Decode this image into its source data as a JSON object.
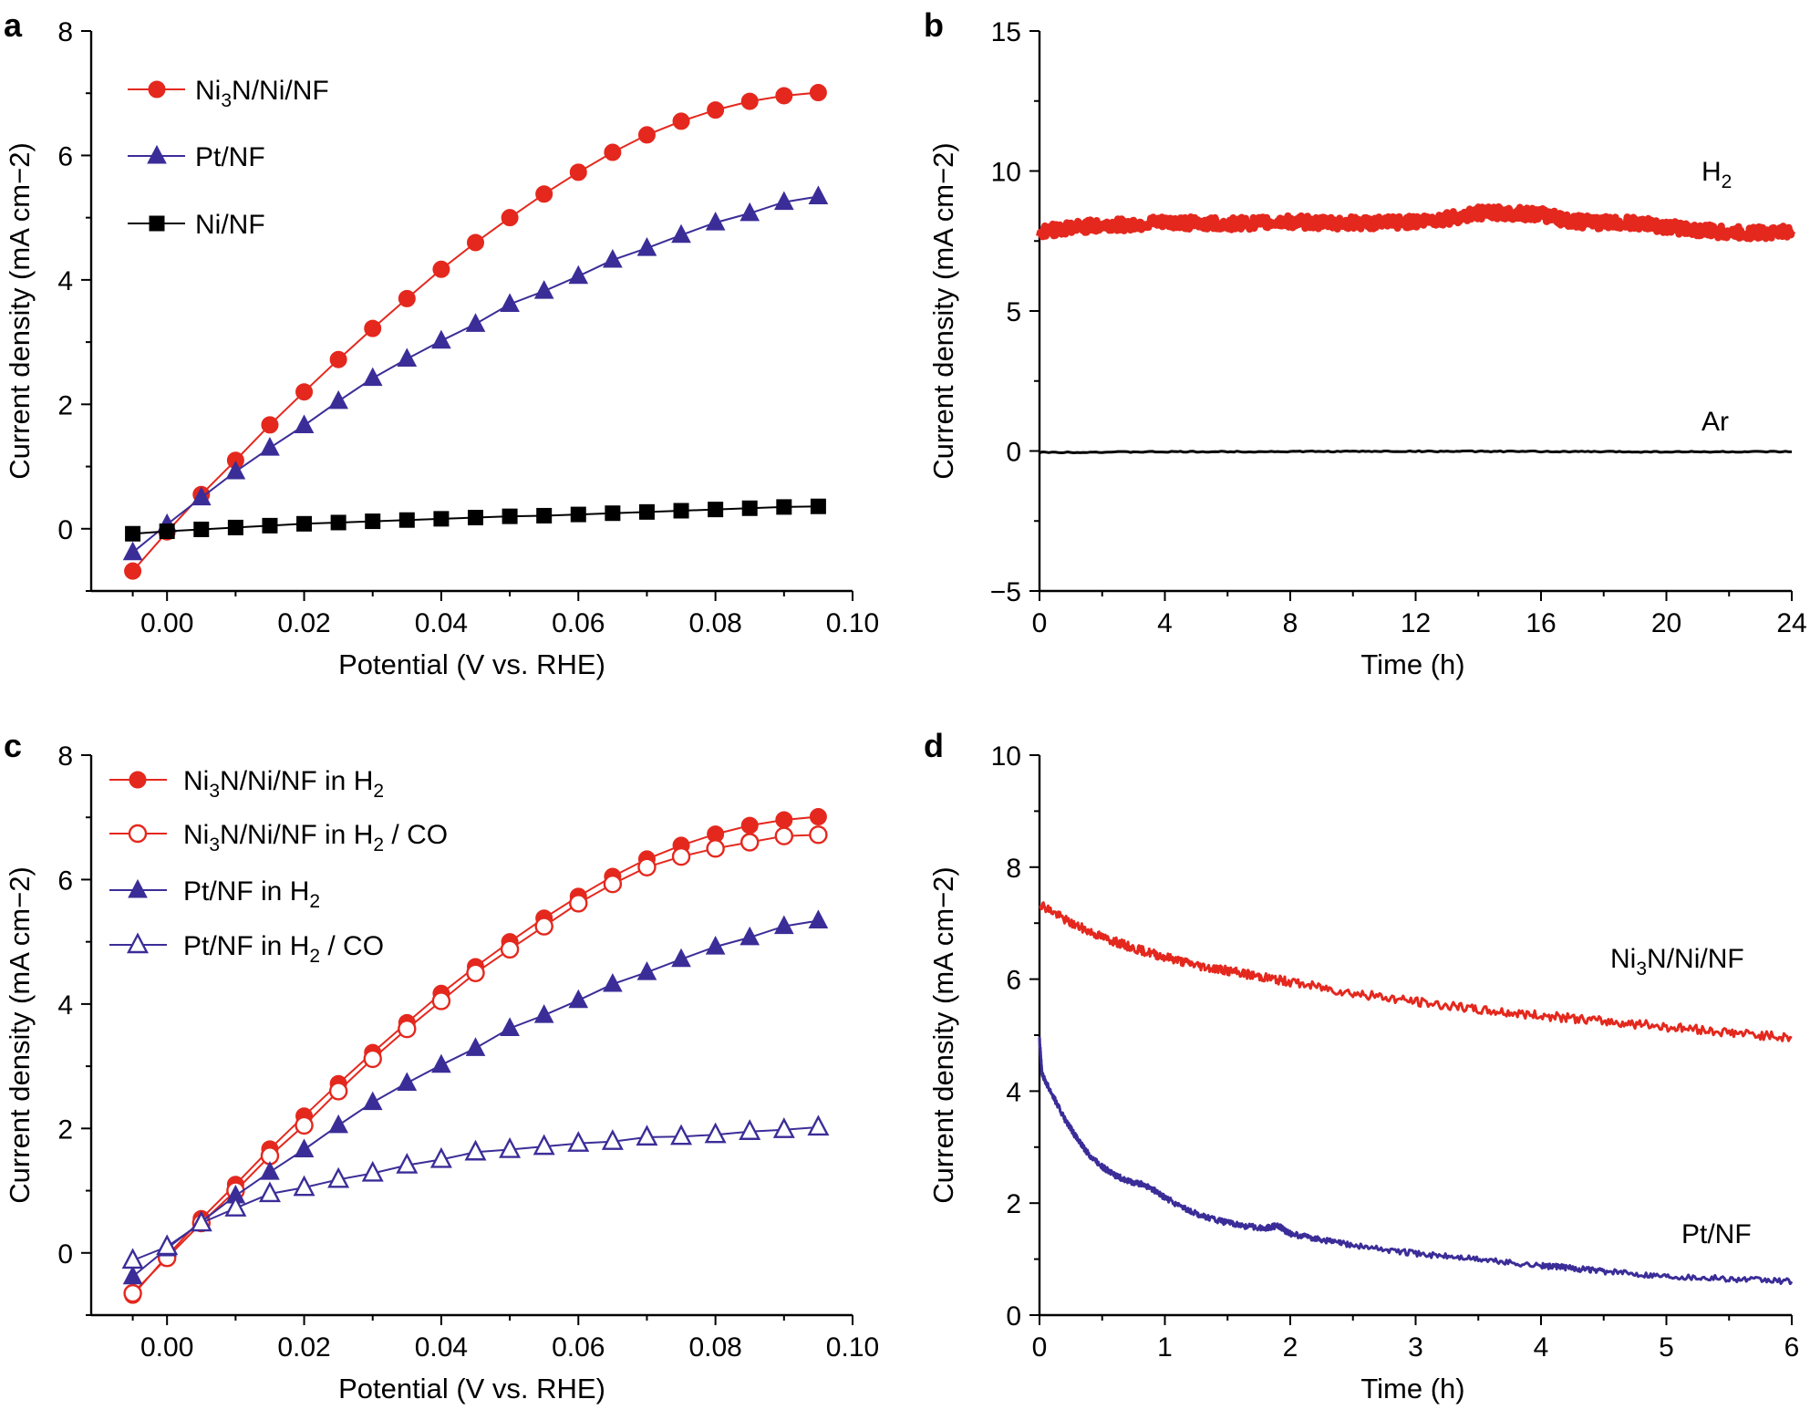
{
  "chart_data": [
    {
      "panel": "a",
      "type": "line",
      "xlabel": "Potential (V vs. RHE)",
      "ylabel": "Current density (mA cm−2)",
      "xlim": [
        -0.01,
        0.1
      ],
      "ylim": [
        -1,
        8
      ],
      "xticks": [
        0.0,
        0.02,
        0.04,
        0.06,
        0.08,
        0.1
      ],
      "xtick_labels": [
        "0.00",
        "0.02",
        "0.04",
        "0.06",
        "0.08",
        "0.10"
      ],
      "yticks": [
        0,
        2,
        4,
        6,
        8
      ],
      "ytick_labels": [
        "0",
        "2",
        "4",
        "6",
        "8"
      ],
      "x": [
        -0.005,
        0.0,
        0.005,
        0.01,
        0.015,
        0.02,
        0.025,
        0.03,
        0.035,
        0.04,
        0.045,
        0.05,
        0.055,
        0.06,
        0.065,
        0.07,
        0.075,
        0.08,
        0.085,
        0.09,
        0.095
      ],
      "series": [
        {
          "name": "Ni3N/Ni/NF",
          "legend": [
            "Ni",
            "3",
            "N/Ni/NF"
          ],
          "color": "#e4281e",
          "marker": "circle",
          "filled": true,
          "values": [
            -0.68,
            -0.05,
            0.55,
            1.1,
            1.67,
            2.2,
            2.72,
            3.22,
            3.7,
            4.17,
            4.6,
            5.0,
            5.38,
            5.73,
            6.05,
            6.33,
            6.55,
            6.73,
            6.87,
            6.96,
            7.01
          ]
        },
        {
          "name": "Pt/NF",
          "legend": [
            "Pt/NF"
          ],
          "color": "#3b2d98",
          "marker": "triangle",
          "filled": true,
          "values": [
            -0.38,
            0.07,
            0.5,
            0.92,
            1.3,
            1.66,
            2.05,
            2.42,
            2.73,
            3.02,
            3.29,
            3.61,
            3.82,
            4.06,
            4.32,
            4.51,
            4.72,
            4.92,
            5.07,
            5.25,
            5.34
          ]
        },
        {
          "name": "Ni/NF",
          "legend": [
            "Ni/NF"
          ],
          "color": "#000000",
          "marker": "square",
          "filled": true,
          "values": [
            -0.08,
            -0.04,
            -0.01,
            0.02,
            0.05,
            0.08,
            0.1,
            0.12,
            0.14,
            0.16,
            0.18,
            0.2,
            0.21,
            0.23,
            0.25,
            0.27,
            0.29,
            0.31,
            0.33,
            0.35,
            0.36
          ]
        }
      ]
    },
    {
      "panel": "b",
      "type": "line",
      "xlabel": "Time (h)",
      "ylabel": "Current density (mA cm−2)",
      "xlim": [
        0,
        24
      ],
      "ylim": [
        -5,
        15
      ],
      "xticks": [
        0,
        4,
        8,
        12,
        16,
        20,
        24
      ],
      "xtick_labels": [
        "0",
        "4",
        "8",
        "12",
        "16",
        "20",
        "24"
      ],
      "yticks": [
        -5,
        0,
        5,
        10,
        15
      ],
      "ytick_labels": [
        "−5",
        "0",
        "5",
        "10",
        "15"
      ],
      "series": [
        {
          "name": "H2",
          "label": [
            "H",
            "2"
          ],
          "color": "#e4281e",
          "x": [
            0,
            1,
            2,
            3,
            4,
            5,
            6,
            7,
            8,
            9,
            10,
            11,
            12,
            13,
            14,
            15,
            16,
            17,
            18,
            19,
            20,
            21,
            22,
            23,
            24
          ],
          "values": [
            7.8,
            8.0,
            8.05,
            8.1,
            8.15,
            8.15,
            8.1,
            8.15,
            8.2,
            8.15,
            8.15,
            8.15,
            8.2,
            8.3,
            8.5,
            8.5,
            8.45,
            8.2,
            8.15,
            8.15,
            8.0,
            7.9,
            7.8,
            7.8,
            7.85
          ]
        },
        {
          "name": "Ar",
          "label": [
            "Ar"
          ],
          "color": "#000000",
          "x": [
            0,
            4,
            8,
            12,
            16,
            20,
            24
          ],
          "values": [
            -0.05,
            -0.03,
            -0.02,
            -0.01,
            -0.02,
            -0.03,
            -0.03
          ]
        }
      ]
    },
    {
      "panel": "c",
      "type": "line",
      "xlabel": "Potential (V vs. RHE)",
      "ylabel": "Current density (mA cm−2)",
      "xlim": [
        -0.01,
        0.1
      ],
      "ylim": [
        -1,
        8
      ],
      "xticks": [
        0.0,
        0.02,
        0.04,
        0.06,
        0.08,
        0.1
      ],
      "xtick_labels": [
        "0.00",
        "0.02",
        "0.04",
        "0.06",
        "0.08",
        "0.10"
      ],
      "yticks": [
        0,
        2,
        4,
        6,
        8
      ],
      "ytick_labels": [
        "0",
        "2",
        "4",
        "6",
        "8"
      ],
      "x": [
        -0.005,
        0.0,
        0.005,
        0.01,
        0.015,
        0.02,
        0.025,
        0.03,
        0.035,
        0.04,
        0.045,
        0.05,
        0.055,
        0.06,
        0.065,
        0.07,
        0.075,
        0.08,
        0.085,
        0.09,
        0.095
      ],
      "series": [
        {
          "name": "Ni3N/Ni/NF in H2",
          "legend": [
            "Ni",
            "3",
            "N/Ni/NF in H",
            "2",
            ""
          ],
          "color": "#e4281e",
          "marker": "circle",
          "filled": true,
          "values": [
            -0.68,
            -0.05,
            0.55,
            1.1,
            1.67,
            2.2,
            2.72,
            3.22,
            3.7,
            4.17,
            4.6,
            5.0,
            5.38,
            5.73,
            6.05,
            6.33,
            6.55,
            6.73,
            6.87,
            6.96,
            7.01
          ]
        },
        {
          "name": "Ni3N/Ni/NF in H2 / CO",
          "legend": [
            "Ni",
            "3",
            "N/Ni/NF in H",
            "2",
            " / CO"
          ],
          "color": "#e4281e",
          "marker": "circle",
          "filled": false,
          "values": [
            -0.65,
            -0.08,
            0.48,
            1.0,
            1.56,
            2.05,
            2.6,
            3.12,
            3.6,
            4.05,
            4.5,
            4.88,
            5.25,
            5.62,
            5.93,
            6.2,
            6.37,
            6.5,
            6.6,
            6.7,
            6.72
          ]
        },
        {
          "name": "Pt/NF in H2",
          "legend": [
            "Pt/NF in H",
            "2",
            ""
          ],
          "color": "#3b2d98",
          "marker": "triangle",
          "filled": true,
          "values": [
            -0.38,
            0.07,
            0.5,
            0.92,
            1.3,
            1.66,
            2.05,
            2.42,
            2.73,
            3.02,
            3.29,
            3.61,
            3.82,
            4.06,
            4.32,
            4.51,
            4.72,
            4.92,
            5.07,
            5.25,
            5.34
          ]
        },
        {
          "name": "Pt/NF in H2 / CO",
          "legend": [
            "Pt/NF in H",
            "2",
            " / CO"
          ],
          "color": "#3b2d98",
          "marker": "triangle",
          "filled": false,
          "values": [
            -0.12,
            0.1,
            0.48,
            0.72,
            0.95,
            1.05,
            1.18,
            1.28,
            1.41,
            1.5,
            1.62,
            1.66,
            1.71,
            1.76,
            1.79,
            1.86,
            1.87,
            1.9,
            1.95,
            1.98,
            2.02
          ]
        }
      ]
    },
    {
      "panel": "d",
      "type": "line",
      "xlabel": "Time (h)",
      "ylabel": "Current density (mA cm−2)",
      "xlim": [
        0,
        6
      ],
      "ylim": [
        0,
        10
      ],
      "xticks": [
        0,
        1,
        2,
        3,
        4,
        5,
        6
      ],
      "xtick_labels": [
        "0",
        "1",
        "2",
        "3",
        "4",
        "5",
        "6"
      ],
      "yticks": [
        0,
        2,
        4,
        6,
        8,
        10
      ],
      "ytick_labels": [
        "0",
        "2",
        "4",
        "6",
        "8",
        "10"
      ],
      "series": [
        {
          "name": "Ni3N/Ni/NF",
          "label": [
            "Ni",
            "3",
            "N/Ni/NF"
          ],
          "color": "#e4281e",
          "x": [
            0,
            0.25,
            0.5,
            0.75,
            1,
            1.25,
            1.5,
            1.75,
            2,
            2.5,
            3,
            3.5,
            4,
            4.5,
            5,
            5.5,
            6
          ],
          "values": [
            7.35,
            7.0,
            6.75,
            6.55,
            6.4,
            6.25,
            6.15,
            6.05,
            5.95,
            5.75,
            5.6,
            5.45,
            5.35,
            5.25,
            5.15,
            5.05,
            4.95
          ]
        },
        {
          "name": "Pt/NF",
          "label": [
            "Pt/NF"
          ],
          "color": "#3b2d98",
          "x": [
            0,
            0.02,
            0.1,
            0.2,
            0.3,
            0.4,
            0.5,
            0.6,
            0.7,
            0.8,
            0.9,
            1.0,
            1.2,
            1.4,
            1.6,
            1.8,
            1.9,
            2.0,
            2.25,
            2.5,
            3.0,
            3.5,
            4.0,
            4.2,
            4.5,
            5.0,
            5.5,
            6.0
          ],
          "values": [
            4.95,
            4.3,
            3.95,
            3.5,
            3.15,
            2.85,
            2.65,
            2.5,
            2.4,
            2.35,
            2.25,
            2.1,
            1.85,
            1.7,
            1.6,
            1.55,
            1.6,
            1.45,
            1.35,
            1.25,
            1.1,
            1.0,
            0.88,
            0.85,
            0.78,
            0.7,
            0.65,
            0.6
          ]
        }
      ]
    }
  ]
}
